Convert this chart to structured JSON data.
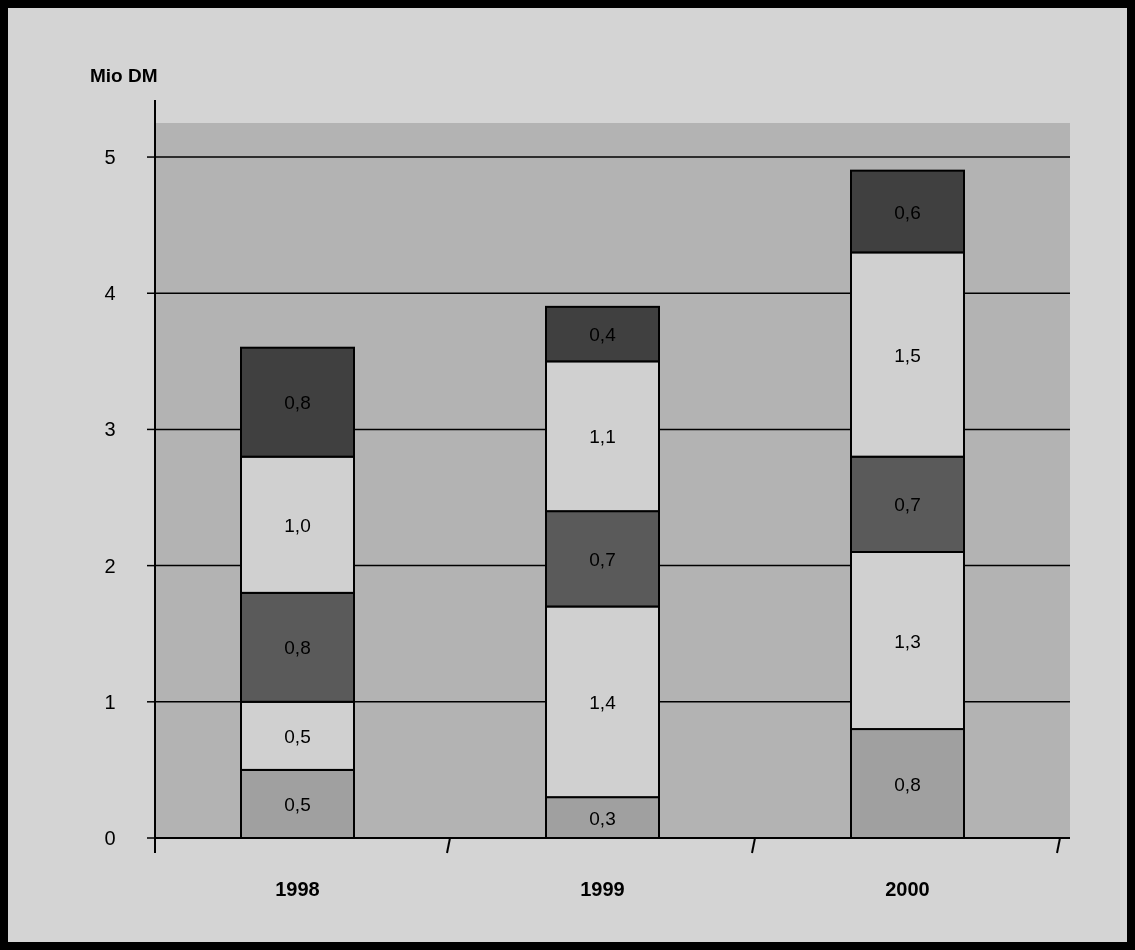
{
  "chart_data": {
    "type": "bar",
    "stacked": true,
    "ylabel": "Mio DM",
    "categories": [
      "1998",
      "1999",
      "2000"
    ],
    "series": [
      {
        "color": "#a0a0a0",
        "values": [
          0.5,
          0.3,
          0.8
        ],
        "value_labels": [
          "0,5",
          "0,3",
          "0,8"
        ]
      },
      {
        "color": "#d0d0d0",
        "values": [
          0.5,
          1.4,
          1.3
        ],
        "value_labels": [
          "0,5",
          "1,4",
          "1,3"
        ]
      },
      {
        "color": "#5a5a5a",
        "values": [
          0.8,
          0.7,
          0.7
        ],
        "value_labels": [
          "0,8",
          "0,7",
          "0,7"
        ]
      },
      {
        "color": "#d0d0d0",
        "values": [
          1.0,
          1.1,
          1.5
        ],
        "value_labels": [
          "1,0",
          "1,1",
          "1,5"
        ]
      },
      {
        "color": "#404040",
        "values": [
          0.8,
          0.4,
          0.6
        ],
        "value_labels": [
          "0,8",
          "0,4",
          "0,6"
        ]
      }
    ],
    "ylim": [
      0,
      5.25
    ],
    "yticks": [
      0,
      1,
      2,
      3,
      4,
      5
    ],
    "grid": "y"
  }
}
